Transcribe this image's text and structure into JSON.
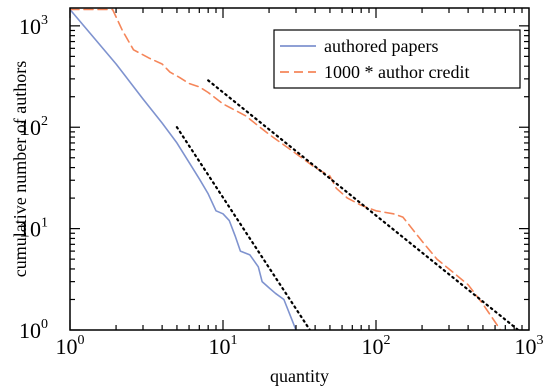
{
  "chart_data": {
    "type": "line",
    "xscale": "log",
    "yscale": "log",
    "xlim": [
      1,
      1000
    ],
    "ylim": [
      1,
      1500
    ],
    "xlabel": "quantity",
    "ylabel": "cumulative number of authors",
    "grid": false,
    "legend_position": "top-right",
    "x_ticks": [
      {
        "base": "10",
        "exp": "0",
        "value": 1
      },
      {
        "base": "10",
        "exp": "1",
        "value": 10
      },
      {
        "base": "10",
        "exp": "2",
        "value": 100
      },
      {
        "base": "10",
        "exp": "3",
        "value": 1000
      }
    ],
    "y_ticks": [
      {
        "base": "10",
        "exp": "0",
        "value": 1
      },
      {
        "base": "10",
        "exp": "1",
        "value": 10
      },
      {
        "base": "10",
        "exp": "2",
        "value": 100
      },
      {
        "base": "10",
        "exp": "3",
        "value": 1000
      }
    ],
    "series": [
      {
        "name": "authored papers",
        "color": "#7f93cf",
        "style": "solid",
        "points": [
          [
            1,
            1450
          ],
          [
            2,
            420
          ],
          [
            3,
            190
          ],
          [
            4,
            110
          ],
          [
            5,
            70
          ],
          [
            6,
            45
          ],
          [
            7,
            31
          ],
          [
            8,
            22
          ],
          [
            9,
            15
          ],
          [
            10,
            14
          ],
          [
            11,
            12
          ],
          [
            12,
            8.5
          ],
          [
            13,
            6
          ],
          [
            15,
            5.5
          ],
          [
            17,
            4.2
          ],
          [
            18,
            3
          ],
          [
            20,
            2.6
          ],
          [
            22,
            2.3
          ],
          [
            25,
            2
          ],
          [
            28,
            1.3
          ],
          [
            30,
            1
          ]
        ]
      },
      {
        "name": "1000 * author credit",
        "color": "#f5865a",
        "style": "dashed",
        "points": [
          [
            1,
            1450
          ],
          [
            1.9,
            1450
          ],
          [
            2.2,
            900
          ],
          [
            2.6,
            580
          ],
          [
            3.3,
            480
          ],
          [
            4,
            420
          ],
          [
            4.5,
            350
          ],
          [
            5.2,
            310
          ],
          [
            6,
            270
          ],
          [
            7,
            250
          ],
          [
            8,
            220
          ],
          [
            10,
            170
          ],
          [
            14,
            130
          ],
          [
            20,
            85
          ],
          [
            30,
            55
          ],
          [
            40,
            40
          ],
          [
            50,
            33
          ],
          [
            55,
            25
          ],
          [
            65,
            20
          ],
          [
            80,
            17
          ],
          [
            100,
            15
          ],
          [
            130,
            14
          ],
          [
            150,
            13
          ],
          [
            200,
            7.5
          ],
          [
            250,
            5
          ],
          [
            300,
            4
          ],
          [
            400,
            2.8
          ],
          [
            500,
            1.8
          ],
          [
            600,
            1.2
          ],
          [
            650,
            1
          ]
        ]
      },
      {
        "name": "",
        "color": "#000000",
        "style": "dotted",
        "points": [
          [
            5,
            100
          ],
          [
            37,
            1
          ]
        ]
      },
      {
        "name": "",
        "color": "#000000",
        "style": "dotted",
        "points": [
          [
            8,
            290
          ],
          [
            850,
            1
          ]
        ]
      }
    ],
    "legend": [
      {
        "label": "authored papers",
        "color": "#7f93cf",
        "style": "solid"
      },
      {
        "label": "1000 * author credit",
        "color": "#f5865a",
        "style": "dashed"
      }
    ]
  }
}
